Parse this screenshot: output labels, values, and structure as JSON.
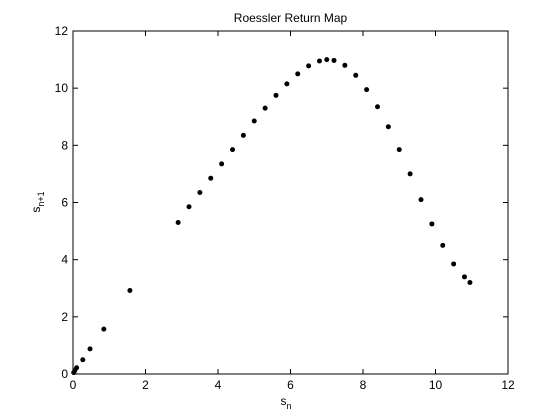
{
  "chart_data": {
    "type": "scatter",
    "title": "Roessler Return Map",
    "xlabel": {
      "base": "s",
      "subscript": "n"
    },
    "ylabel": {
      "base": "s",
      "subscript": "n+1"
    },
    "xlim": [
      0,
      12
    ],
    "ylim": [
      0,
      12
    ],
    "xticks": [
      0,
      2,
      4,
      6,
      8,
      10,
      12
    ],
    "yticks": [
      0,
      2,
      4,
      6,
      8,
      10,
      12
    ],
    "grid": false,
    "marker_color": "#000000",
    "series": [
      {
        "points": [
          [
            0.02,
            0.05
          ],
          [
            0.05,
            0.12
          ],
          [
            0.1,
            0.22
          ],
          [
            0.27,
            0.5
          ],
          [
            0.47,
            0.88
          ],
          [
            0.85,
            1.57
          ],
          [
            1.57,
            2.92
          ],
          [
            2.9,
            5.3
          ],
          [
            3.2,
            5.85
          ],
          [
            3.5,
            6.35
          ],
          [
            3.8,
            6.85
          ],
          [
            4.1,
            7.35
          ],
          [
            4.4,
            7.85
          ],
          [
            4.7,
            8.35
          ],
          [
            5.0,
            8.85
          ],
          [
            5.3,
            9.3
          ],
          [
            5.6,
            9.75
          ],
          [
            5.9,
            10.15
          ],
          [
            6.2,
            10.5
          ],
          [
            6.5,
            10.78
          ],
          [
            6.8,
            10.95
          ],
          [
            7.0,
            11.0
          ],
          [
            7.2,
            10.97
          ],
          [
            7.5,
            10.8
          ],
          [
            7.8,
            10.45
          ],
          [
            8.1,
            9.95
          ],
          [
            8.4,
            9.35
          ],
          [
            8.7,
            8.65
          ],
          [
            9.0,
            7.85
          ],
          [
            9.3,
            7.0
          ],
          [
            9.6,
            6.1
          ],
          [
            9.9,
            5.25
          ],
          [
            10.2,
            4.5
          ],
          [
            10.5,
            3.85
          ],
          [
            10.8,
            3.4
          ],
          [
            10.95,
            3.2
          ]
        ]
      }
    ]
  }
}
